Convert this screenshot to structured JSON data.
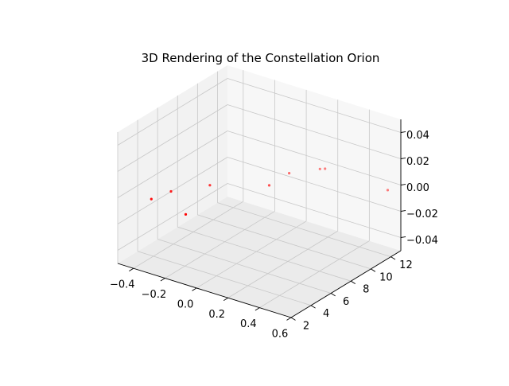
{
  "chart_data": {
    "type": "scatter",
    "projection": "3d",
    "title": "3D Rendering of the Constellation Orion",
    "xlabel": "",
    "ylabel": "",
    "zlabel": "",
    "xlim": [
      -0.5,
      0.6
    ],
    "ylim": [
      2,
      13
    ],
    "zlim": [
      -0.05,
      0.05
    ],
    "x_ticks": [
      -0.4,
      -0.2,
      0.0,
      0.2,
      0.4,
      0.6
    ],
    "x_tick_labels": [
      "−0.4",
      "−0.2",
      "0.0",
      "0.2",
      "0.4",
      "0.6"
    ],
    "y_ticks": [
      2,
      4,
      6,
      8,
      10,
      12
    ],
    "y_tick_labels": [
      "2",
      "4",
      "6",
      "8",
      "10",
      "12"
    ],
    "z_ticks": [
      -0.04,
      -0.02,
      0.0,
      0.02,
      0.04
    ],
    "z_tick_labels": [
      "−0.04",
      "−0.02",
      "0.00",
      "0.02",
      "0.04"
    ],
    "grid": true,
    "marker_color": "#ff0000",
    "points": [
      {
        "x": -0.35,
        "y": 3.0,
        "z": 0
      },
      {
        "x": -0.32,
        "y": 4.5,
        "z": 0
      },
      {
        "x": -0.1,
        "y": 2.5,
        "z": 0
      },
      {
        "x": -0.2,
        "y": 6.5,
        "z": 0
      },
      {
        "x": 0.05,
        "y": 10.5,
        "z": 0
      },
      {
        "x": 0.05,
        "y": 8.5,
        "z": 0
      },
      {
        "x": 0.15,
        "y": 12.0,
        "z": 0
      },
      {
        "x": 0.17,
        "y": 12.2,
        "z": 0
      },
      {
        "x": 0.58,
        "y": 12.0,
        "z": 0
      }
    ]
  }
}
